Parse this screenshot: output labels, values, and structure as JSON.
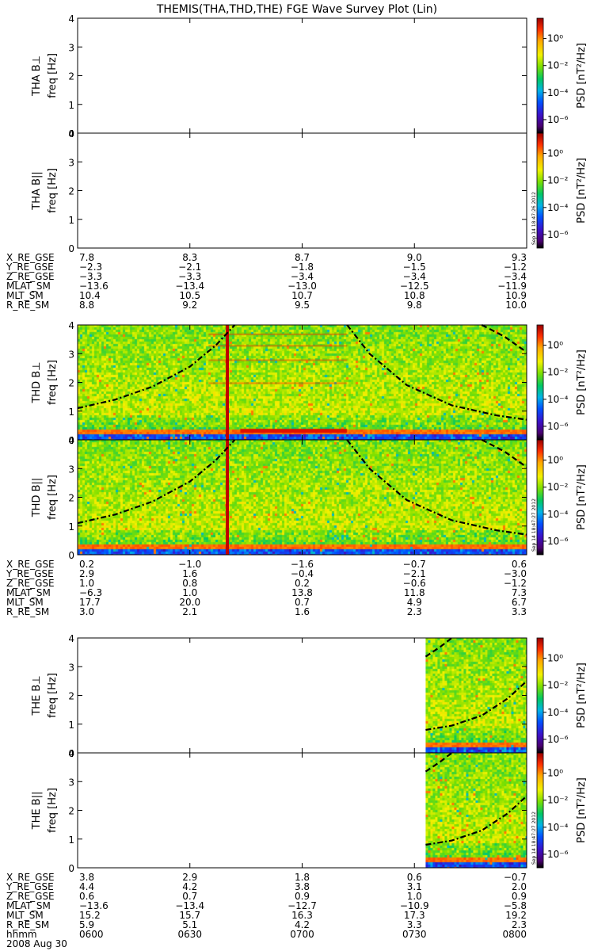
{
  "chart_data": {
    "type": "heatmap",
    "title": "THEMIS(THA,THD,THE) FGE Wave Survey Plot (Lin)",
    "date_label": "2008 Aug 30",
    "time_axis": {
      "label": "hhmm",
      "ticks": [
        "0600",
        "0630",
        "0700",
        "0730",
        "0800"
      ],
      "range_minutes": [
        0,
        120
      ]
    },
    "colorbar": {
      "label": "PSD [nT²/Hz]",
      "ticks": [
        "10⁰",
        "10⁻²",
        "10⁻⁴",
        "10⁻⁶"
      ],
      "log_range": [
        -7,
        1.5
      ],
      "tick_exponents": [
        0,
        -2,
        -4,
        -6
      ]
    },
    "freq_axis": {
      "label": "freq [Hz]",
      "ticks": [
        "0",
        "1",
        "2",
        "3",
        "4"
      ],
      "range": [
        0,
        4
      ]
    },
    "probes": [
      {
        "id": "THA",
        "panels": [
          {
            "label": "THA B⊥",
            "has_data": false,
            "stamp": ""
          },
          {
            "label": "THA B||",
            "has_data": false,
            "stamp": "Sep 14 18:47:26 2012"
          }
        ],
        "ephemeris": [
          {
            "name": "X_RE_GSE",
            "values": [
              "7.8",
              "8.3",
              "8.7",
              "9.0",
              "9.3"
            ]
          },
          {
            "name": "Y_RE_GSE",
            "values": [
              "−2.3",
              "−2.1",
              "−1.8",
              "−1.5",
              "−1.2"
            ]
          },
          {
            "name": "Z_RE_GSE",
            "values": [
              "−3.3",
              "−3.3",
              "−3.4",
              "−3.4",
              "−3.4"
            ]
          },
          {
            "name": "MLAT_SM",
            "values": [
              "−13.6",
              "−13.4",
              "−13.0",
              "−12.5",
              "−11.9"
            ]
          },
          {
            "name": "MLT_SM",
            "values": [
              "10.4",
              "10.5",
              "10.7",
              "10.8",
              "10.9"
            ]
          },
          {
            "name": "R_RE_SM",
            "values": [
              "8.8",
              "9.2",
              "9.5",
              "9.8",
              "10.0"
            ]
          }
        ]
      },
      {
        "id": "THD",
        "data_range_minutes": [
          0,
          120
        ],
        "spike_minute": 40,
        "panels": [
          {
            "label": "THD B⊥",
            "has_data": true,
            "stamp": ""
          },
          {
            "label": "THD B||",
            "has_data": true,
            "stamp": "Sep 14 18:47:27 2012"
          }
        ],
        "curves": [
          {
            "style": "dash-dot",
            "points": [
              [
                0,
                1.1
              ],
              [
                10,
                1.4
              ],
              [
                20,
                1.85
              ],
              [
                30,
                2.55
              ],
              [
                37,
                3.3
              ],
              [
                42,
                4.0
              ]
            ]
          },
          {
            "style": "dash-dot",
            "points": [
              [
                72,
                4.0
              ],
              [
                78,
                3.0
              ],
              [
                88,
                1.9
              ],
              [
                100,
                1.2
              ],
              [
                112,
                0.85
              ],
              [
                120,
                0.7
              ]
            ]
          },
          {
            "style": "dash",
            "points": [
              [
                108,
                4.0
              ],
              [
                114,
                3.6
              ],
              [
                120,
                3.05
              ]
            ]
          }
        ],
        "ephemeris": [
          {
            "name": "X_RE_GSE",
            "values": [
              "0.2",
              "−1.0",
              "−1.6",
              "−0.7",
              "0.6"
            ]
          },
          {
            "name": "Y_RE_GSE",
            "values": [
              "2.9",
              "1.6",
              "−0.4",
              "−2.1",
              "−3.0"
            ]
          },
          {
            "name": "Z_RE_GSE",
            "values": [
              "1.0",
              "0.8",
              "0.2",
              "−0.6",
              "−1.2"
            ]
          },
          {
            "name": "MLAT_SM",
            "values": [
              "−6.3",
              "1.0",
              "13.8",
              "11.8",
              "7.3"
            ]
          },
          {
            "name": "MLT_SM",
            "values": [
              "17.7",
              "20.0",
              "0.7",
              "4.9",
              "6.7"
            ]
          },
          {
            "name": "R_RE_SM",
            "values": [
              "3.0",
              "2.1",
              "1.6",
              "2.3",
              "3.3"
            ]
          }
        ]
      },
      {
        "id": "THE",
        "data_range_minutes": [
          93,
          120
        ],
        "panels": [
          {
            "label": "THE B⊥",
            "has_data": true,
            "stamp": ""
          },
          {
            "label": "THE B||",
            "has_data": true,
            "stamp": "Sep 14 18:47:27 2012"
          }
        ],
        "curves": [
          {
            "style": "dash-dot",
            "points": [
              [
                93,
                0.8
              ],
              [
                100,
                0.95
              ],
              [
                108,
                1.3
              ],
              [
                115,
                1.9
              ],
              [
                120,
                2.5
              ]
            ]
          },
          {
            "style": "dash",
            "points": [
              [
                93,
                3.35
              ],
              [
                97,
                3.7
              ],
              [
                100,
                4.0
              ]
            ]
          }
        ],
        "ephemeris": [
          {
            "name": "X_RE_GSE",
            "values": [
              "3.8",
              "2.9",
              "1.8",
              "0.6",
              "−0.7"
            ]
          },
          {
            "name": "Y_RE_GSE",
            "values": [
              "4.4",
              "4.2",
              "3.8",
              "3.1",
              "2.0"
            ]
          },
          {
            "name": "Z_RE_GSE",
            "values": [
              "0.6",
              "0.7",
              "0.9",
              "1.0",
              "0.9"
            ]
          },
          {
            "name": "MLAT_SM",
            "values": [
              "−13.6",
              "−13.4",
              "−12.7",
              "−10.9",
              "−5.8"
            ]
          },
          {
            "name": "MLT_SM",
            "values": [
              "15.2",
              "15.7",
              "16.3",
              "17.3",
              "19.2"
            ]
          },
          {
            "name": "R_RE_SM",
            "values": [
              "5.9",
              "5.1",
              "4.2",
              "3.3",
              "2.3"
            ]
          }
        ]
      }
    ]
  }
}
